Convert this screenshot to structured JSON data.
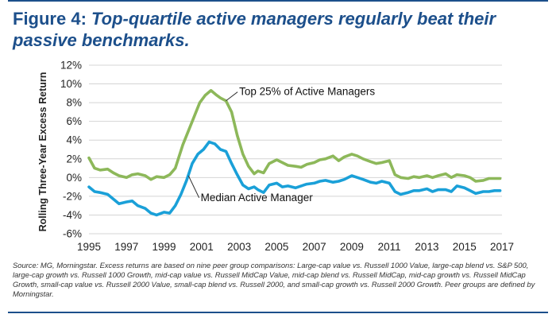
{
  "figure": {
    "label": "Figure 4:",
    "title": "Top-quartile active managers regularly beat their passive benchmarks."
  },
  "source_note": "Source: MG, Morningstar. Excess returns are based on nine peer group comparisons: Large-cap value vs. Russell 1000 Value, large-cap blend vs. S&P 500, large-cap growth vs. Russell 1000 Growth, mid-cap value vs. Russell MidCap Value, mid-cap blend vs. Russell MidCap, mid-cap growth vs. Russell MidCap Growth, small-cap value vs. Russell 2000 Value, small-cap blend vs. Russell 2000, and small-cap growth vs. Russell 2000 Growth. Peer groups are defined by Morningstar.",
  "colors": {
    "title": "#1c4f8b",
    "top_series": "#8db85a",
    "median_series": "#1aa0d8",
    "grid": "#d4d4d4"
  },
  "chart_data": {
    "type": "line",
    "title": "",
    "xlabel": "",
    "ylabel": "Rolling Three-Year Excess Return",
    "xlim": [
      1995,
      2017
    ],
    "ylim": [
      -6,
      12
    ],
    "x_ticks": [
      "1995",
      "1997",
      "1999",
      "2001",
      "2003",
      "2005",
      "2007",
      "2009",
      "2011",
      "2013",
      "2015",
      "2017"
    ],
    "y_ticks": [
      "12%",
      "10%",
      "8%",
      "6%",
      "4%",
      "2%",
      "0%",
      "-2%",
      "-4%",
      "-6%"
    ],
    "grid": "horizontal",
    "series": [
      {
        "name": "Top 25% of Active Managers",
        "label": "Top 25% of Active Managers",
        "color": "#8db85a",
        "points": [
          [
            1995.0,
            2.1
          ],
          [
            1995.3,
            1.0
          ],
          [
            1995.6,
            0.8
          ],
          [
            1996.0,
            0.9
          ],
          [
            1996.3,
            0.5
          ],
          [
            1996.6,
            0.2
          ],
          [
            1997.0,
            0.0
          ],
          [
            1997.3,
            0.3
          ],
          [
            1997.6,
            0.4
          ],
          [
            1998.0,
            0.2
          ],
          [
            1998.3,
            -0.2
          ],
          [
            1998.6,
            0.1
          ],
          [
            1999.0,
            0.0
          ],
          [
            1999.3,
            0.3
          ],
          [
            1999.6,
            1.0
          ],
          [
            2000.0,
            3.5
          ],
          [
            2000.3,
            5.0
          ],
          [
            2000.6,
            6.5
          ],
          [
            2000.9,
            8.0
          ],
          [
            2001.2,
            8.8
          ],
          [
            2001.5,
            9.3
          ],
          [
            2001.8,
            8.8
          ],
          [
            2002.0,
            8.5
          ],
          [
            2002.3,
            8.2
          ],
          [
            2002.6,
            7.0
          ],
          [
            2002.9,
            4.5
          ],
          [
            2003.2,
            2.5
          ],
          [
            2003.5,
            1.2
          ],
          [
            2003.8,
            0.4
          ],
          [
            2004.0,
            0.7
          ],
          [
            2004.3,
            0.5
          ],
          [
            2004.6,
            1.5
          ],
          [
            2005.0,
            1.9
          ],
          [
            2005.3,
            1.6
          ],
          [
            2005.6,
            1.3
          ],
          [
            2006.0,
            1.2
          ],
          [
            2006.3,
            1.1
          ],
          [
            2006.6,
            1.4
          ],
          [
            2007.0,
            1.6
          ],
          [
            2007.3,
            1.9
          ],
          [
            2007.6,
            2.0
          ],
          [
            2008.0,
            2.3
          ],
          [
            2008.3,
            1.8
          ],
          [
            2008.6,
            2.2
          ],
          [
            2009.0,
            2.5
          ],
          [
            2009.3,
            2.3
          ],
          [
            2009.6,
            2.0
          ],
          [
            2010.0,
            1.7
          ],
          [
            2010.3,
            1.5
          ],
          [
            2010.6,
            1.6
          ],
          [
            2011.0,
            1.8
          ],
          [
            2011.3,
            0.3
          ],
          [
            2011.6,
            0.0
          ],
          [
            2012.0,
            -0.1
          ],
          [
            2012.3,
            0.1
          ],
          [
            2012.6,
            0.0
          ],
          [
            2013.0,
            0.2
          ],
          [
            2013.3,
            0.0
          ],
          [
            2013.6,
            0.2
          ],
          [
            2014.0,
            0.4
          ],
          [
            2014.3,
            0.0
          ],
          [
            2014.6,
            0.3
          ],
          [
            2015.0,
            0.2
          ],
          [
            2015.3,
            0.0
          ],
          [
            2015.6,
            -0.4
          ],
          [
            2016.0,
            -0.3
          ],
          [
            2016.3,
            -0.1
          ],
          [
            2016.6,
            -0.1
          ],
          [
            2016.9,
            -0.1
          ]
        ]
      },
      {
        "name": "Median Active Manager",
        "label": "Median Active Manager",
        "color": "#1aa0d8",
        "points": [
          [
            1995.0,
            -1.0
          ],
          [
            1995.3,
            -1.5
          ],
          [
            1995.6,
            -1.6
          ],
          [
            1996.0,
            -1.8
          ],
          [
            1996.3,
            -2.3
          ],
          [
            1996.6,
            -2.8
          ],
          [
            1997.0,
            -2.6
          ],
          [
            1997.3,
            -2.5
          ],
          [
            1997.6,
            -3.0
          ],
          [
            1998.0,
            -3.3
          ],
          [
            1998.3,
            -3.8
          ],
          [
            1998.6,
            -4.0
          ],
          [
            1999.0,
            -3.7
          ],
          [
            1999.3,
            -3.8
          ],
          [
            1999.6,
            -3.0
          ],
          [
            1999.9,
            -1.8
          ],
          [
            2000.2,
            -0.3
          ],
          [
            2000.5,
            1.5
          ],
          [
            2000.8,
            2.5
          ],
          [
            2001.1,
            3.0
          ],
          [
            2001.4,
            3.8
          ],
          [
            2001.7,
            3.6
          ],
          [
            2002.0,
            3.0
          ],
          [
            2002.3,
            2.8
          ],
          [
            2002.6,
            1.5
          ],
          [
            2002.9,
            0.3
          ],
          [
            2003.2,
            -0.8
          ],
          [
            2003.5,
            -1.2
          ],
          [
            2003.8,
            -1.0
          ],
          [
            2004.0,
            -1.3
          ],
          [
            2004.3,
            -1.6
          ],
          [
            2004.6,
            -0.8
          ],
          [
            2005.0,
            -0.6
          ],
          [
            2005.3,
            -1.0
          ],
          [
            2005.6,
            -0.9
          ],
          [
            2006.0,
            -1.1
          ],
          [
            2006.3,
            -0.9
          ],
          [
            2006.6,
            -0.7
          ],
          [
            2007.0,
            -0.6
          ],
          [
            2007.3,
            -0.4
          ],
          [
            2007.6,
            -0.3
          ],
          [
            2008.0,
            -0.5
          ],
          [
            2008.3,
            -0.4
          ],
          [
            2008.6,
            -0.2
          ],
          [
            2009.0,
            0.2
          ],
          [
            2009.3,
            0.0
          ],
          [
            2009.6,
            -0.2
          ],
          [
            2010.0,
            -0.5
          ],
          [
            2010.3,
            -0.6
          ],
          [
            2010.6,
            -0.4
          ],
          [
            2011.0,
            -0.6
          ],
          [
            2011.3,
            -1.5
          ],
          [
            2011.6,
            -1.8
          ],
          [
            2012.0,
            -1.6
          ],
          [
            2012.3,
            -1.4
          ],
          [
            2012.6,
            -1.4
          ],
          [
            2013.0,
            -1.2
          ],
          [
            2013.3,
            -1.5
          ],
          [
            2013.6,
            -1.3
          ],
          [
            2014.0,
            -1.3
          ],
          [
            2014.3,
            -1.5
          ],
          [
            2014.6,
            -0.9
          ],
          [
            2015.0,
            -1.1
          ],
          [
            2015.3,
            -1.4
          ],
          [
            2015.6,
            -1.7
          ],
          [
            2016.0,
            -1.5
          ],
          [
            2016.3,
            -1.5
          ],
          [
            2016.6,
            -1.4
          ],
          [
            2016.9,
            -1.4
          ]
        ]
      }
    ]
  }
}
